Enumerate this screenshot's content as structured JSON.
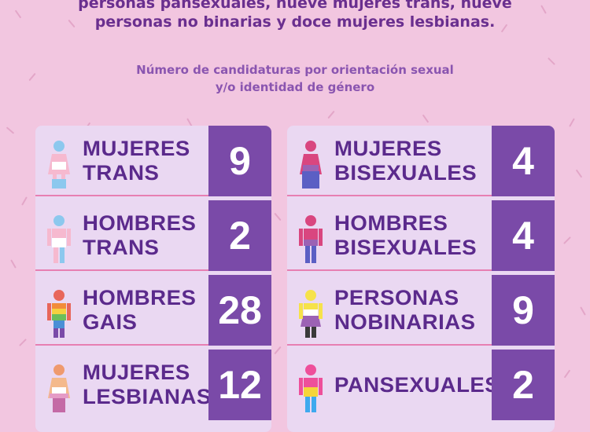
{
  "intro": {
    "line1": "personas pansexuales, nueve mujeres trans, nueve",
    "line2": "personas no binarias y doce mujeres lesbianas."
  },
  "subtitle": {
    "line1": "Número de candidaturas por orientación sexual",
    "line2": "y/o identidad de género"
  },
  "colors": {
    "background": "#f2c6e0",
    "card": "#ead8f2",
    "number_box": "#7a4aa8",
    "divider": "#e77fb2",
    "label_text": "#5b2a8c"
  },
  "left": [
    {
      "label1": "MUJERES",
      "label2": "TRANS",
      "value": "9",
      "icon": "trans-woman-flag-icon"
    },
    {
      "label1": "HOMBRES",
      "label2": "TRANS",
      "value": "2",
      "icon": "trans-man-flag-icon"
    },
    {
      "label1": "HOMBRES",
      "label2": "GAIS",
      "value": "28",
      "icon": "gay-man-rainbow-icon"
    },
    {
      "label1": "MUJERES",
      "label2": "LESBIANAS",
      "value": "12",
      "icon": "lesbian-woman-flag-icon"
    }
  ],
  "right": [
    {
      "label1": "MUJERES",
      "label2": "BISEXUALES",
      "value": "4",
      "icon": "bisexual-woman-flag-icon"
    },
    {
      "label1": "HOMBRES",
      "label2": "BISEXUALES",
      "value": "4",
      "icon": "bisexual-man-flag-icon"
    },
    {
      "label1": "PERSONAS",
      "label2": "NOBINARIAS",
      "value": "9",
      "icon": "nonbinary-person-flag-icon"
    },
    {
      "label1": "PANSEXUALES",
      "label2": "",
      "value": "2",
      "icon": "pansexual-person-flag-icon"
    }
  ]
}
